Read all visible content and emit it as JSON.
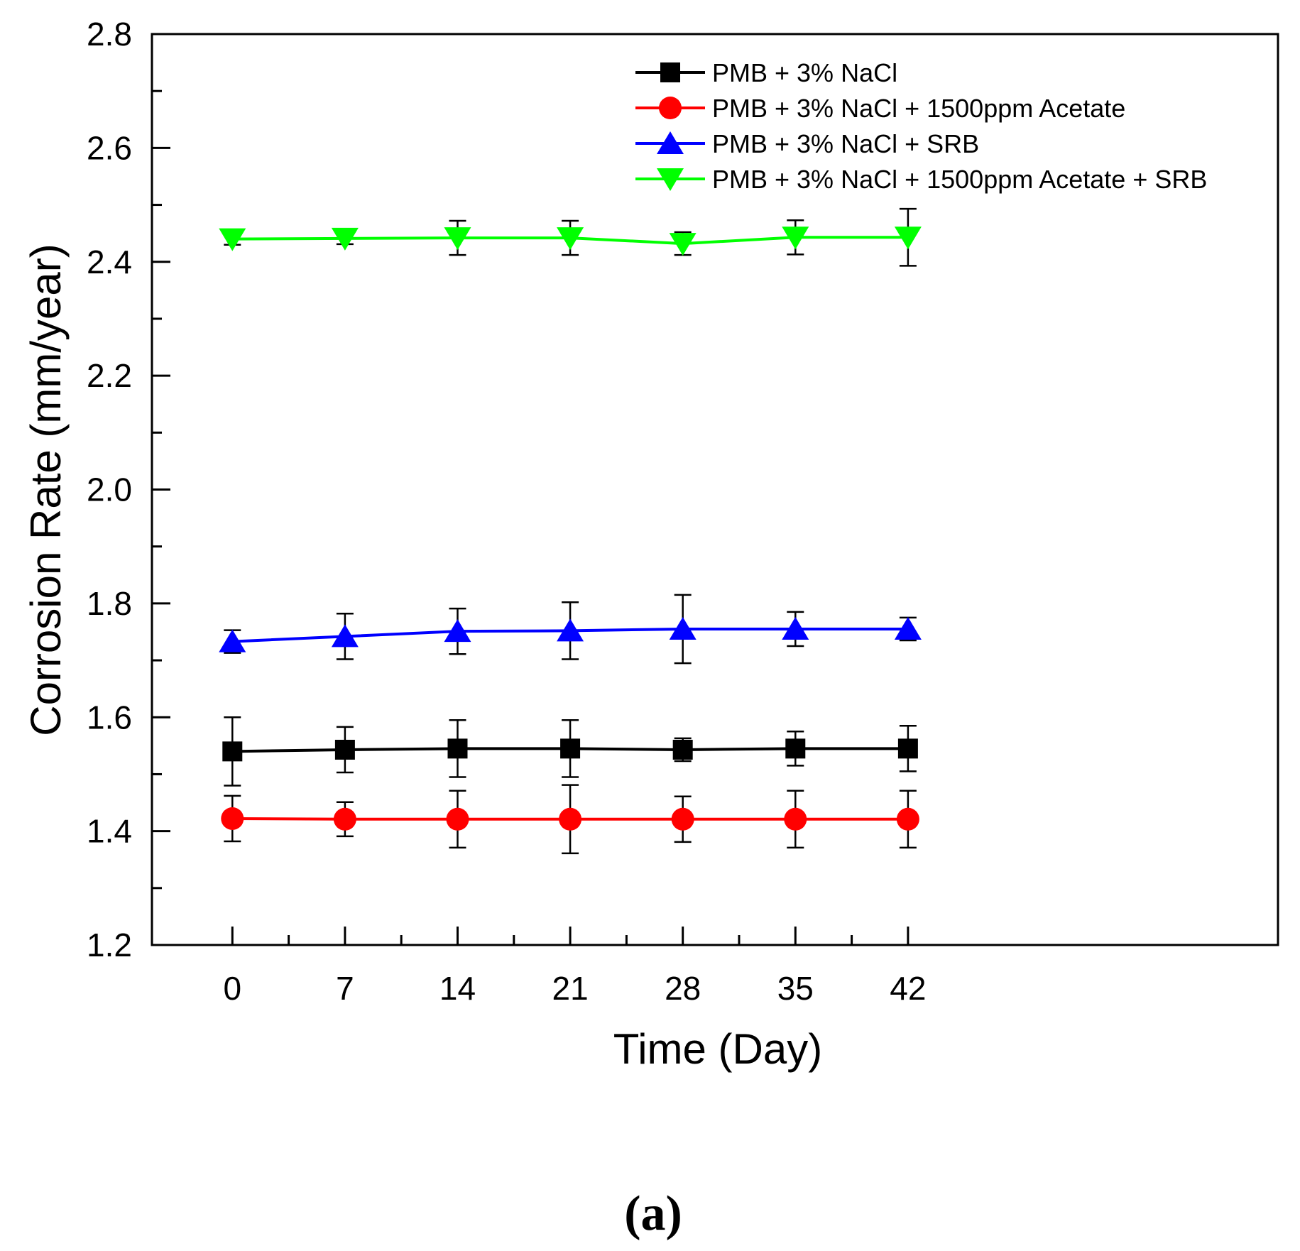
{
  "chart_data": {
    "type": "line",
    "xlabel": "Time (Day)",
    "ylabel": "Corrosion Rate (mm/year)",
    "panel_label": "(a)",
    "xlim": [
      -5,
      65
    ],
    "ylim": [
      1.2,
      2.8
    ],
    "x_ticks": [
      0,
      7,
      14,
      21,
      28,
      35,
      42
    ],
    "x_tick_labels": [
      "0",
      "7",
      "14",
      "21",
      "28",
      "35",
      "42"
    ],
    "x_minor_ticks": [
      3.5,
      10.5,
      17.5,
      24.5,
      31.5,
      38.5
    ],
    "y_ticks": [
      1.2,
      1.4,
      1.6,
      1.8,
      2.0,
      2.2,
      2.4,
      2.6,
      2.8
    ],
    "y_tick_labels": [
      "1.2",
      "1.4",
      "1.6",
      "1.8",
      "2.0",
      "2.2",
      "2.4",
      "2.6",
      "2.8"
    ],
    "y_minor_ticks": [
      1.3,
      1.5,
      1.7,
      1.9,
      2.1,
      2.3,
      2.5,
      2.7
    ],
    "grid": false,
    "legend_position": "top-right",
    "x": [
      0,
      7,
      14,
      21,
      28,
      35,
      42
    ],
    "series": [
      {
        "name": "PMB + 3% NaCl",
        "color": "#000000",
        "marker": "square",
        "values": [
          1.54,
          1.543,
          1.545,
          1.545,
          1.543,
          1.545,
          1.545
        ],
        "errors": [
          0.06,
          0.04,
          0.05,
          0.05,
          0.02,
          0.03,
          0.04
        ]
      },
      {
        "name": "PMB + 3% NaCl + 1500ppm Acetate",
        "color": "#ff0000",
        "marker": "circle",
        "values": [
          1.422,
          1.421,
          1.421,
          1.421,
          1.421,
          1.421,
          1.421
        ],
        "errors": [
          0.04,
          0.03,
          0.05,
          0.06,
          0.04,
          0.05,
          0.05
        ]
      },
      {
        "name": "PMB + 3% NaCl + SRB",
        "color": "#0000ff",
        "marker": "triangle-up",
        "values": [
          1.733,
          1.742,
          1.751,
          1.752,
          1.755,
          1.755,
          1.755
        ],
        "errors": [
          0.02,
          0.04,
          0.04,
          0.05,
          0.06,
          0.03,
          0.02
        ]
      },
      {
        "name": "PMB + 3% NaCl + 1500ppm Acetate + SRB",
        "color": "#00ff00",
        "marker": "triangle-down",
        "values": [
          2.44,
          2.441,
          2.442,
          2.442,
          2.432,
          2.443,
          2.443
        ],
        "errors": [
          0.01,
          0.01,
          0.03,
          0.03,
          0.02,
          0.03,
          0.05
        ]
      }
    ]
  }
}
